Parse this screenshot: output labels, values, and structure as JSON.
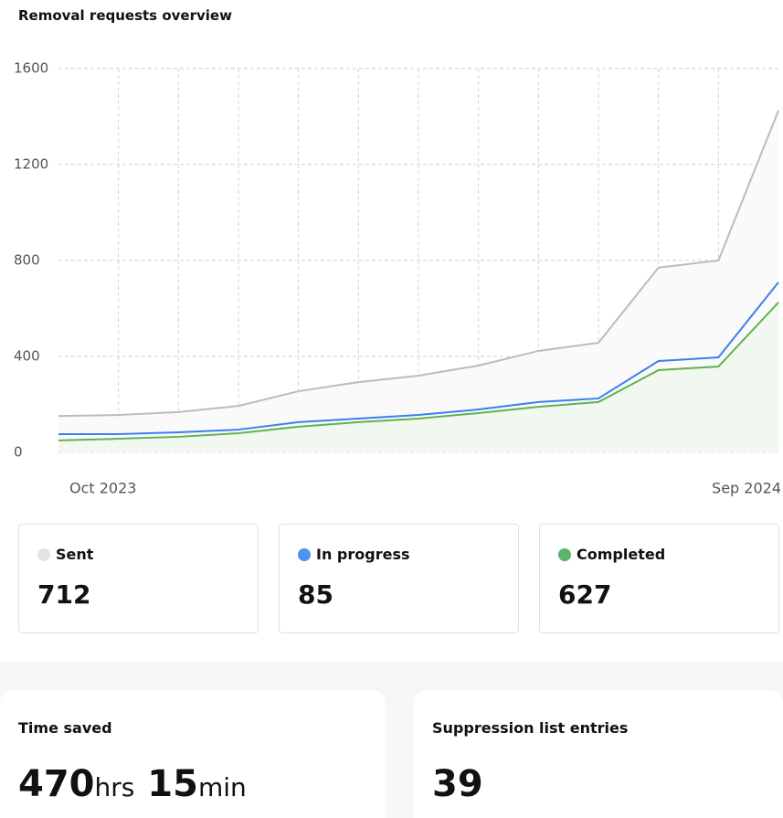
{
  "chart_data": {
    "type": "line",
    "title": "Removal requests overview",
    "categories": [
      "Oct 2023",
      null,
      null,
      null,
      null,
      null,
      null,
      null,
      null,
      null,
      null,
      null,
      "Sep 2024"
    ],
    "series": [
      {
        "name": "Sent",
        "color": "#bdb9c6",
        "fill": "#fafafa",
        "legend_color": "#e3e3e3",
        "total": 712,
        "values": [
          152,
          156,
          168,
          194,
          255,
          293,
          320,
          362,
          423,
          457,
          770,
          800,
          1425
        ]
      },
      {
        "name": "In progress",
        "color": "#3b7ff0",
        "fill": null,
        "legend_color": "#4a93f0",
        "total": 85,
        "values": [
          76,
          76,
          84,
          95,
          126,
          141,
          156,
          179,
          210,
          225,
          381,
          396,
          709
        ]
      },
      {
        "name": "Completed",
        "color": "#62b152",
        "fill": "#f1f8ef",
        "legend_color": "#5cb36a",
        "total": 627,
        "values": [
          50,
          57,
          65,
          80,
          107,
          126,
          141,
          164,
          190,
          210,
          343,
          358,
          625
        ]
      }
    ],
    "ylim": [
      0,
      1600
    ],
    "yticks": [
      0,
      400,
      800,
      1200,
      1600
    ],
    "grid": true
  },
  "time_saved": {
    "label": "Time saved",
    "hours": 470,
    "hours_unit": "hrs",
    "minutes": 15,
    "minutes_unit": "min"
  },
  "suppression": {
    "label": "Suppression list entries",
    "value": 39
  }
}
